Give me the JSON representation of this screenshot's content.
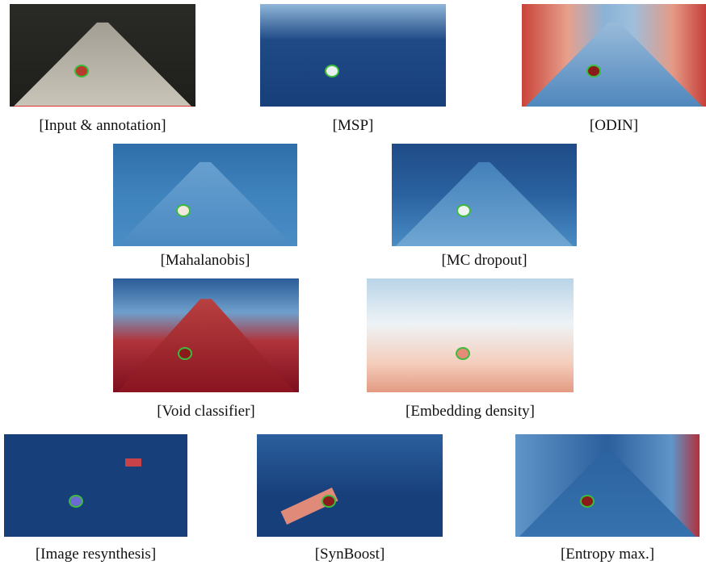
{
  "panels": [
    {
      "caption": "[Input & annotation]"
    },
    {
      "caption": "[MSP]"
    },
    {
      "caption": "[ODIN]"
    },
    {
      "caption": "[Mahalanobis]"
    },
    {
      "caption": "[MC dropout]"
    },
    {
      "caption": "[Void classifier]"
    },
    {
      "caption": "[Embedding density]"
    },
    {
      "caption": "[Image resynthesis]"
    },
    {
      "caption": "[SynBoost]"
    },
    {
      "caption": "[Entropy max.]"
    }
  ]
}
